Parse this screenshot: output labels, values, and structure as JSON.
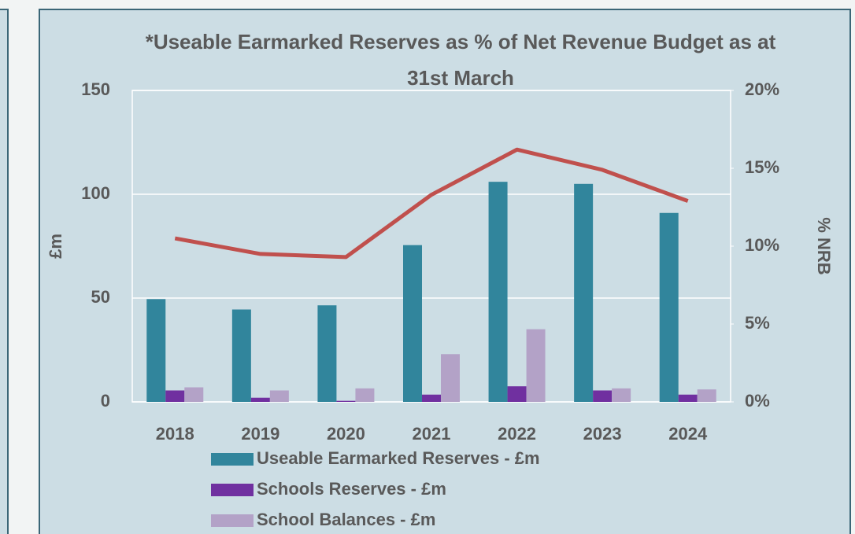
{
  "chart_data": {
    "type": "bar",
    "title": "*Useable Earmarked Reserves as % of Net Revenue Budget as at 31st March",
    "y_label": "£m",
    "y2_label": "% NRB",
    "categories": [
      "2018",
      "2019",
      "2020",
      "2021",
      "2022",
      "2023",
      "2024"
    ],
    "series": [
      {
        "name": "Useable Earmarked Reserves - £m",
        "color": "#31859c",
        "values": [
          49.5,
          44.5,
          46.5,
          75.5,
          106,
          105,
          91
        ]
      },
      {
        "name": "Schools Reserves - £m",
        "color": "#7030a0",
        "values": [
          5.5,
          2,
          0.5,
          3.5,
          7.5,
          5.5,
          3.5
        ]
      },
      {
        "name": "School Balances - £m",
        "color": "#b3a2c7",
        "values": [
          7,
          5.5,
          6.5,
          23,
          35,
          6.5,
          6
        ]
      },
      {
        "type": "line",
        "axis": "y2",
        "color": "#c0504d",
        "values": [
          10.5,
          9.5,
          9.3,
          13.3,
          16.2,
          14.9,
          12.9
        ]
      }
    ],
    "ylim": [
      0,
      150
    ],
    "yticks": [
      0,
      50,
      100,
      150
    ],
    "y2lim": [
      0,
      20
    ],
    "y2ticks": [
      {
        "value": 0,
        "label": "0%"
      },
      {
        "value": 5,
        "label": "5%"
      },
      {
        "value": 10,
        "label": "10%"
      },
      {
        "value": 15,
        "label": "15%"
      },
      {
        "value": 20,
        "label": "20%"
      }
    ],
    "grid": true
  }
}
